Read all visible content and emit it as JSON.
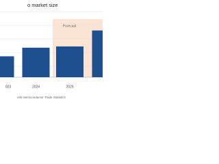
{
  "chart_data": {
    "type": "bar",
    "title": "o market size",
    "categories": [
      "023",
      "2024",
      "2025",
      null
    ],
    "values": [
      1.7,
      2.4,
      2.5,
      3.8
    ],
    "color": "#1d4f8f",
    "ylim": [
      0,
      6
    ],
    "grid": true,
    "forecast_label": "Forecast",
    "forecast_color": "#fce4d4",
    "source": "orld Semiconductor Trade Statistics"
  }
}
